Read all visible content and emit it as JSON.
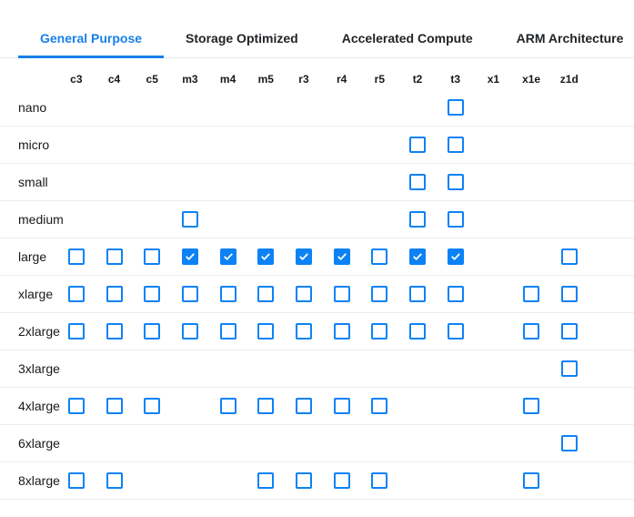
{
  "tabs": [
    {
      "label": "General Purpose",
      "active": true
    },
    {
      "label": "Storage Optimized",
      "active": false
    },
    {
      "label": "Accelerated Compute",
      "active": false
    },
    {
      "label": "ARM Architecture",
      "active": false
    }
  ],
  "colors": {
    "tab_accent": "#1780ea",
    "checkbox_accent": "#0d82f5",
    "row_divider": "#ededed",
    "tabbar_divider": "#e4e7e9",
    "text_dark": "#17191c"
  },
  "matrix": {
    "columns": [
      "c3",
      "c4",
      "c5",
      "m3",
      "m4",
      "m5",
      "r3",
      "r4",
      "r5",
      "t2",
      "t3",
      "x1",
      "x1e",
      "z1d"
    ],
    "rows": [
      {
        "label": "nano",
        "cells": [
          null,
          null,
          null,
          null,
          null,
          null,
          null,
          null,
          null,
          null,
          "unchecked",
          null,
          null,
          null
        ]
      },
      {
        "label": "micro",
        "cells": [
          null,
          null,
          null,
          null,
          null,
          null,
          null,
          null,
          null,
          "unchecked",
          "unchecked",
          null,
          null,
          null
        ]
      },
      {
        "label": "small",
        "cells": [
          null,
          null,
          null,
          null,
          null,
          null,
          null,
          null,
          null,
          "unchecked",
          "unchecked",
          null,
          null,
          null
        ]
      },
      {
        "label": "medium",
        "cells": [
          null,
          null,
          null,
          "unchecked",
          null,
          null,
          null,
          null,
          null,
          "unchecked",
          "unchecked",
          null,
          null,
          null
        ]
      },
      {
        "label": "large",
        "cells": [
          "unchecked",
          "unchecked",
          "unchecked",
          "checked",
          "checked",
          "checked",
          "checked",
          "checked",
          "unchecked",
          "checked",
          "checked",
          null,
          null,
          "unchecked"
        ]
      },
      {
        "label": "xlarge",
        "cells": [
          "unchecked",
          "unchecked",
          "unchecked",
          "unchecked",
          "unchecked",
          "unchecked",
          "unchecked",
          "unchecked",
          "unchecked",
          "unchecked",
          "unchecked",
          null,
          "unchecked",
          "unchecked"
        ]
      },
      {
        "label": "2xlarge",
        "cells": [
          "unchecked",
          "unchecked",
          "unchecked",
          "unchecked",
          "unchecked",
          "unchecked",
          "unchecked",
          "unchecked",
          "unchecked",
          "unchecked",
          "unchecked",
          null,
          "unchecked",
          "unchecked"
        ]
      },
      {
        "label": "3xlarge",
        "cells": [
          null,
          null,
          null,
          null,
          null,
          null,
          null,
          null,
          null,
          null,
          null,
          null,
          null,
          "unchecked"
        ]
      },
      {
        "label": "4xlarge",
        "cells": [
          "unchecked",
          "unchecked",
          "unchecked",
          null,
          "unchecked",
          "unchecked",
          "unchecked",
          "unchecked",
          "unchecked",
          null,
          null,
          null,
          "unchecked",
          null
        ]
      },
      {
        "label": "6xlarge",
        "cells": [
          null,
          null,
          null,
          null,
          null,
          null,
          null,
          null,
          null,
          null,
          null,
          null,
          null,
          "unchecked"
        ]
      },
      {
        "label": "8xlarge",
        "cells": [
          "unchecked",
          "unchecked",
          null,
          null,
          null,
          "unchecked",
          "unchecked",
          "unchecked",
          "unchecked",
          null,
          null,
          null,
          "unchecked",
          null
        ]
      }
    ]
  }
}
